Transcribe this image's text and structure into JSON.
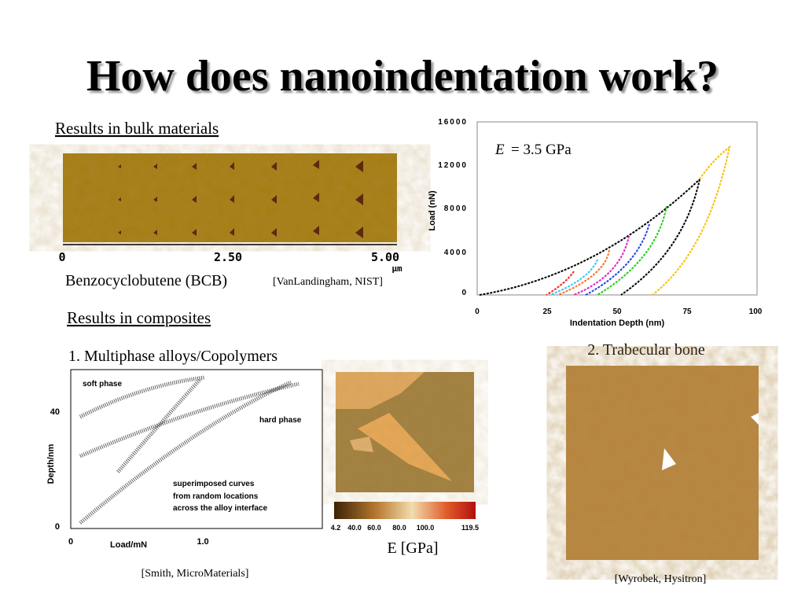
{
  "header": {
    "title": "How does nanoindentation work?"
  },
  "bulk": {
    "heading": "Results in bulk materials",
    "scale_labels": [
      "0",
      "2.50",
      "5.00"
    ],
    "scale_unit": "μm",
    "caption": "Benzocyclobutene (BCB)",
    "source": "[VanLandingham, NIST]"
  },
  "load_chart": {
    "y_label": "Load (nN)",
    "y_ticks": [
      "0",
      "4000",
      "8000",
      "12000",
      "16000"
    ],
    "x_label": "Indentation Depth (nm)",
    "x_ticks": [
      "0",
      "25",
      "50",
      "75",
      "100"
    ],
    "annotation_symbol": "E",
    "annotation_text": "= 3.5 GPa"
  },
  "composites": {
    "heading": "Results in composites",
    "item1": "1. Multiphase alloys/Copolymers",
    "depth_chart": {
      "y_label": "Depth/nm",
      "y_ticks": [
        "40",
        "0"
      ],
      "x_label": "Load/mN",
      "x_ticks": [
        "0",
        "1.0"
      ],
      "notes": [
        "soft phase",
        "hard phase",
        "superimposed curves",
        "from random locations",
        "across the alloy interface"
      ]
    },
    "colorbar_labels": [
      "4.2",
      "40.0",
      "60.0",
      "80.0",
      "100.0",
      "119.5"
    ],
    "colorbar_title": "E [GPa]",
    "source1": "[Smith, MicroMaterials]",
    "item2": "2. Trabecular bone",
    "source2": "[Wyrobek, Hysitron]"
  }
}
